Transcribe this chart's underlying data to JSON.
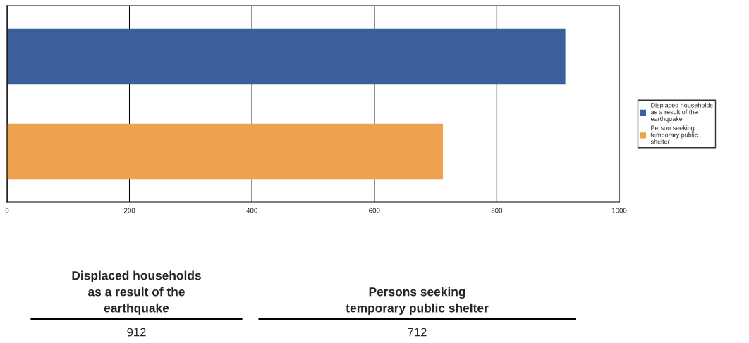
{
  "chart_data": {
    "type": "bar",
    "orientation": "horizontal",
    "categories": [
      null,
      null
    ],
    "series": [
      {
        "name": "Displaced households as a result of the earthquake",
        "color": "#3a5f9b",
        "values": [
          912,
          null
        ]
      },
      {
        "name": "Person seeking temporary public shelter",
        "color": "#eea24f",
        "values": [
          null,
          712
        ]
      }
    ],
    "xlim": [
      0,
      1000
    ],
    "xticks": [
      0,
      200,
      400,
      600,
      800,
      1000
    ],
    "grid": "x",
    "legend": "right",
    "annotations": [
      "Displaced households\nas a result of the\nearthquake",
      "Persons seeking\ntemporary public shelter",
      "912",
      "712"
    ]
  }
}
